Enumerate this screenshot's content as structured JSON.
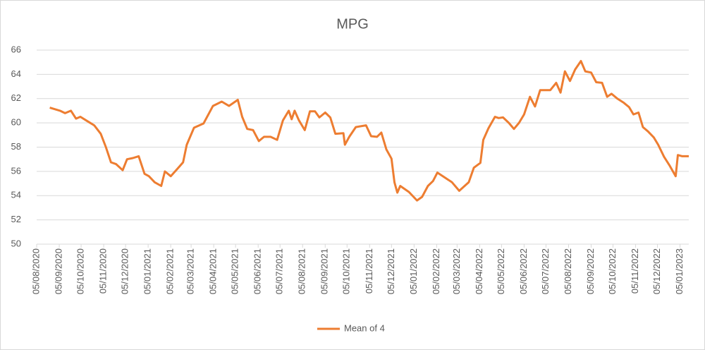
{
  "chart_data": {
    "type": "line",
    "title": "MPG",
    "x": [
      "2020-08-23",
      "2020-09-06",
      "2020-09-13",
      "2020-09-21",
      "2020-09-28",
      "2020-10-04",
      "2020-10-12",
      "2020-10-23",
      "2020-11-01",
      "2020-11-08",
      "2020-11-15",
      "2020-11-22",
      "2020-12-01",
      "2020-12-07",
      "2020-12-15",
      "2020-12-23",
      "2020-12-31",
      "2021-01-06",
      "2021-01-14",
      "2021-01-23",
      "2021-01-28",
      "2021-02-05",
      "2021-02-14",
      "2021-02-22",
      "2021-02-27",
      "2021-03-09",
      "2021-03-22",
      "2021-04-04",
      "2021-04-16",
      "2021-04-26",
      "2021-05-08",
      "2021-05-14",
      "2021-05-21",
      "2021-05-29",
      "2021-06-06",
      "2021-06-13",
      "2021-06-22",
      "2021-07-01",
      "2021-07-09",
      "2021-07-17",
      "2021-07-21",
      "2021-07-25",
      "2021-07-31",
      "2021-08-08",
      "2021-08-15",
      "2021-08-22",
      "2021-08-28",
      "2021-09-05",
      "2021-09-12",
      "2021-09-19",
      "2021-09-30",
      "2021-10-02",
      "2021-10-08",
      "2021-10-17",
      "2021-10-31",
      "2021-11-07",
      "2021-11-15",
      "2021-11-21",
      "2021-11-28",
      "2021-12-05",
      "2021-12-09",
      "2021-12-13",
      "2021-12-17",
      "2021-12-29",
      "2022-01-09",
      "2022-01-16",
      "2022-01-24",
      "2022-01-31",
      "2022-02-06",
      "2022-02-26",
      "2022-03-08",
      "2022-03-21",
      "2022-03-28",
      "2022-04-06",
      "2022-04-10",
      "2022-04-17",
      "2022-04-26",
      "2022-05-01",
      "2022-05-07",
      "2022-05-15",
      "2022-05-22",
      "2022-05-29",
      "2022-06-05",
      "2022-06-13",
      "2022-06-20",
      "2022-06-27",
      "2022-07-11",
      "2022-07-19",
      "2022-07-25",
      "2022-07-31",
      "2022-08-07",
      "2022-08-14",
      "2022-08-22",
      "2022-08-28",
      "2022-09-05",
      "2022-09-12",
      "2022-09-20",
      "2022-09-27",
      "2022-10-03",
      "2022-10-11",
      "2022-10-20",
      "2022-10-27",
      "2022-11-02",
      "2022-11-09",
      "2022-11-15",
      "2022-11-22",
      "2022-11-30",
      "2022-12-06",
      "2022-12-14",
      "2022-12-22",
      "2022-12-30",
      "2023-01-02",
      "2023-01-08",
      "2023-01-17"
    ],
    "series": [
      {
        "name": "Mean of 4",
        "color": "#ed7d31",
        "values": [
          61.25,
          61.0,
          60.8,
          61.0,
          60.35,
          60.5,
          60.2,
          59.8,
          59.1,
          58.0,
          56.75,
          56.6,
          56.1,
          57.0,
          57.1,
          57.25,
          55.8,
          55.6,
          55.1,
          54.8,
          56.0,
          55.6,
          56.2,
          56.75,
          58.2,
          59.6,
          59.95,
          61.4,
          61.75,
          61.4,
          61.9,
          60.5,
          59.5,
          59.4,
          58.5,
          58.85,
          58.85,
          58.6,
          60.2,
          61.0,
          60.3,
          61.0,
          60.2,
          59.4,
          60.95,
          60.95,
          60.45,
          60.85,
          60.45,
          59.1,
          59.15,
          58.2,
          58.85,
          59.65,
          59.8,
          58.9,
          58.85,
          59.2,
          57.8,
          57.05,
          55.1,
          54.25,
          54.8,
          54.3,
          53.6,
          53.9,
          54.8,
          55.2,
          55.9,
          55.1,
          54.4,
          55.1,
          56.3,
          56.7,
          58.6,
          59.55,
          60.5,
          60.4,
          60.45,
          60.0,
          59.5,
          60.0,
          60.7,
          62.15,
          61.35,
          62.7,
          62.7,
          63.3,
          62.5,
          64.25,
          63.45,
          64.4,
          65.1,
          64.25,
          64.15,
          63.35,
          63.3,
          62.15,
          62.4,
          62.0,
          61.65,
          61.3,
          60.7,
          60.85,
          59.65,
          59.3,
          58.8,
          58.2,
          57.2,
          56.45,
          55.6,
          57.35,
          57.25,
          57.25
        ]
      }
    ],
    "xlim": [
      "2020-08-05",
      "2023-01-17"
    ],
    "xticks": [
      {
        "value": "2020-08-05",
        "label": "05/08/2020"
      },
      {
        "value": "2020-09-05",
        "label": "05/09/2020"
      },
      {
        "value": "2020-10-05",
        "label": "05/10/2020"
      },
      {
        "value": "2020-11-05",
        "label": "05/11/2020"
      },
      {
        "value": "2020-12-05",
        "label": "05/12/2020"
      },
      {
        "value": "2021-01-05",
        "label": "05/01/2021"
      },
      {
        "value": "2021-02-05",
        "label": "05/02/2021"
      },
      {
        "value": "2021-03-05",
        "label": "05/03/2021"
      },
      {
        "value": "2021-04-05",
        "label": "05/04/2021"
      },
      {
        "value": "2021-05-05",
        "label": "05/05/2021"
      },
      {
        "value": "2021-06-05",
        "label": "05/06/2021"
      },
      {
        "value": "2021-07-05",
        "label": "05/07/2021"
      },
      {
        "value": "2021-08-05",
        "label": "05/08/2021"
      },
      {
        "value": "2021-09-05",
        "label": "05/09/2021"
      },
      {
        "value": "2021-10-05",
        "label": "05/10/2021"
      },
      {
        "value": "2021-11-05",
        "label": "05/11/2021"
      },
      {
        "value": "2021-12-05",
        "label": "05/12/2021"
      },
      {
        "value": "2022-01-05",
        "label": "05/01/2022"
      },
      {
        "value": "2022-02-05",
        "label": "05/02/2022"
      },
      {
        "value": "2022-03-05",
        "label": "05/03/2022"
      },
      {
        "value": "2022-04-05",
        "label": "05/04/2022"
      },
      {
        "value": "2022-05-05",
        "label": "05/05/2022"
      },
      {
        "value": "2022-06-05",
        "label": "05/06/2022"
      },
      {
        "value": "2022-07-05",
        "label": "05/07/2022"
      },
      {
        "value": "2022-08-05",
        "label": "05/08/2022"
      },
      {
        "value": "2022-09-05",
        "label": "05/09/2022"
      },
      {
        "value": "2022-10-05",
        "label": "05/10/2022"
      },
      {
        "value": "2022-11-05",
        "label": "05/11/2022"
      },
      {
        "value": "2022-12-05",
        "label": "05/12/2022"
      },
      {
        "value": "2023-01-05",
        "label": "05/01/2023"
      }
    ],
    "ylim": [
      50,
      66
    ],
    "yticks": [
      50,
      52,
      54,
      56,
      58,
      60,
      62,
      64,
      66
    ],
    "grid": true,
    "legend": "bottom"
  }
}
